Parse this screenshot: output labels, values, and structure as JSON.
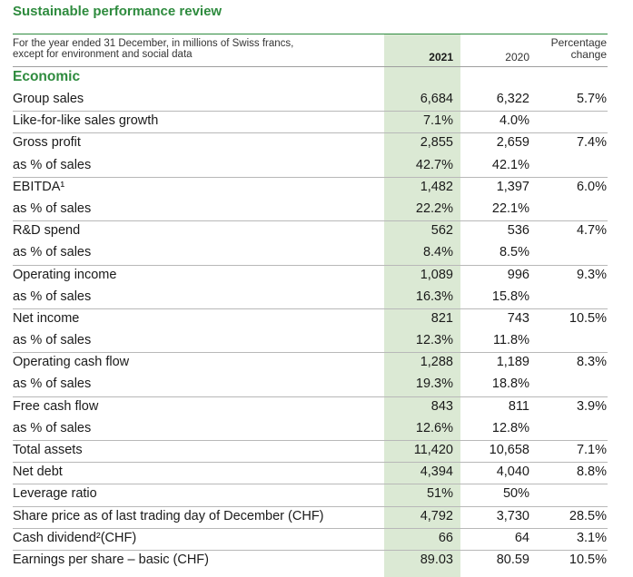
{
  "title": "Sustainable performance review",
  "header": {
    "description_line1": "For the year ended 31 December, in millions of Swiss francs,",
    "description_line2": "except for environment and social data",
    "col_2021": "2021",
    "col_2020": "2020",
    "col_pct_line1": "Percentage",
    "col_pct_line2": "change"
  },
  "section": "Economic",
  "rows": [
    {
      "label": "Group sales",
      "y2021": "6,684",
      "y2020": "6,322",
      "pct": "5.7%"
    },
    {
      "label": "Like-for-like sales growth",
      "y2021": "7.1%",
      "y2020": "4.0%",
      "pct": ""
    },
    {
      "label": "Gross profit",
      "y2021": "2,855",
      "y2020": "2,659",
      "pct": "7.4%"
    },
    {
      "label": "as % of sales",
      "y2021": "42.7%",
      "y2020": "42.1%",
      "pct": ""
    },
    {
      "label": "EBITDA¹",
      "y2021": "1,482",
      "y2020": "1,397",
      "pct": "6.0%"
    },
    {
      "label": "as % of sales",
      "y2021": "22.2%",
      "y2020": "22.1%",
      "pct": ""
    },
    {
      "label": "R&D spend",
      "y2021": "562",
      "y2020": "536",
      "pct": "4.7%"
    },
    {
      "label": "as % of sales",
      "y2021": "8.4%",
      "y2020": "8.5%",
      "pct": ""
    },
    {
      "label": "Operating income",
      "y2021": "1,089",
      "y2020": "996",
      "pct": "9.3%"
    },
    {
      "label": "as % of sales",
      "y2021": "16.3%",
      "y2020": "15.8%",
      "pct": ""
    },
    {
      "label": "Net income",
      "y2021": "821",
      "y2020": "743",
      "pct": "10.5%"
    },
    {
      "label": "as % of sales",
      "y2021": "12.3%",
      "y2020": "11.8%",
      "pct": ""
    },
    {
      "label": "Operating cash flow",
      "y2021": "1,288",
      "y2020": "1,189",
      "pct": "8.3%"
    },
    {
      "label": "as % of sales",
      "y2021": "19.3%",
      "y2020": "18.8%",
      "pct": ""
    },
    {
      "label": "Free cash flow",
      "y2021": "843",
      "y2020": "811",
      "pct": "3.9%"
    },
    {
      "label": "as % of sales",
      "y2021": "12.6%",
      "y2020": "12.8%",
      "pct": ""
    },
    {
      "label": "Total assets",
      "y2021": "11,420",
      "y2020": "10,658",
      "pct": "7.1%"
    },
    {
      "label": "Net debt",
      "y2021": "4,394",
      "y2020": "4,040",
      "pct": "8.8%"
    },
    {
      "label": "Leverage ratio",
      "y2021": "51%",
      "y2020": "50%",
      "pct": ""
    },
    {
      "label": "Share price as of last trading day of December (CHF)",
      "y2021": "4,792",
      "y2020": "3,730",
      "pct": "28.5%"
    },
    {
      "label": "Cash dividend²(CHF)",
      "y2021": "66",
      "y2020": "64",
      "pct": "3.1%"
    },
    {
      "label": "Earnings per share – basic (CHF)",
      "y2021": "89.03",
      "y2020": "80.59",
      "pct": "10.5%"
    }
  ],
  "colors": {
    "accent": "#2e8b3e",
    "highlight_column": "#dbe9d4"
  }
}
